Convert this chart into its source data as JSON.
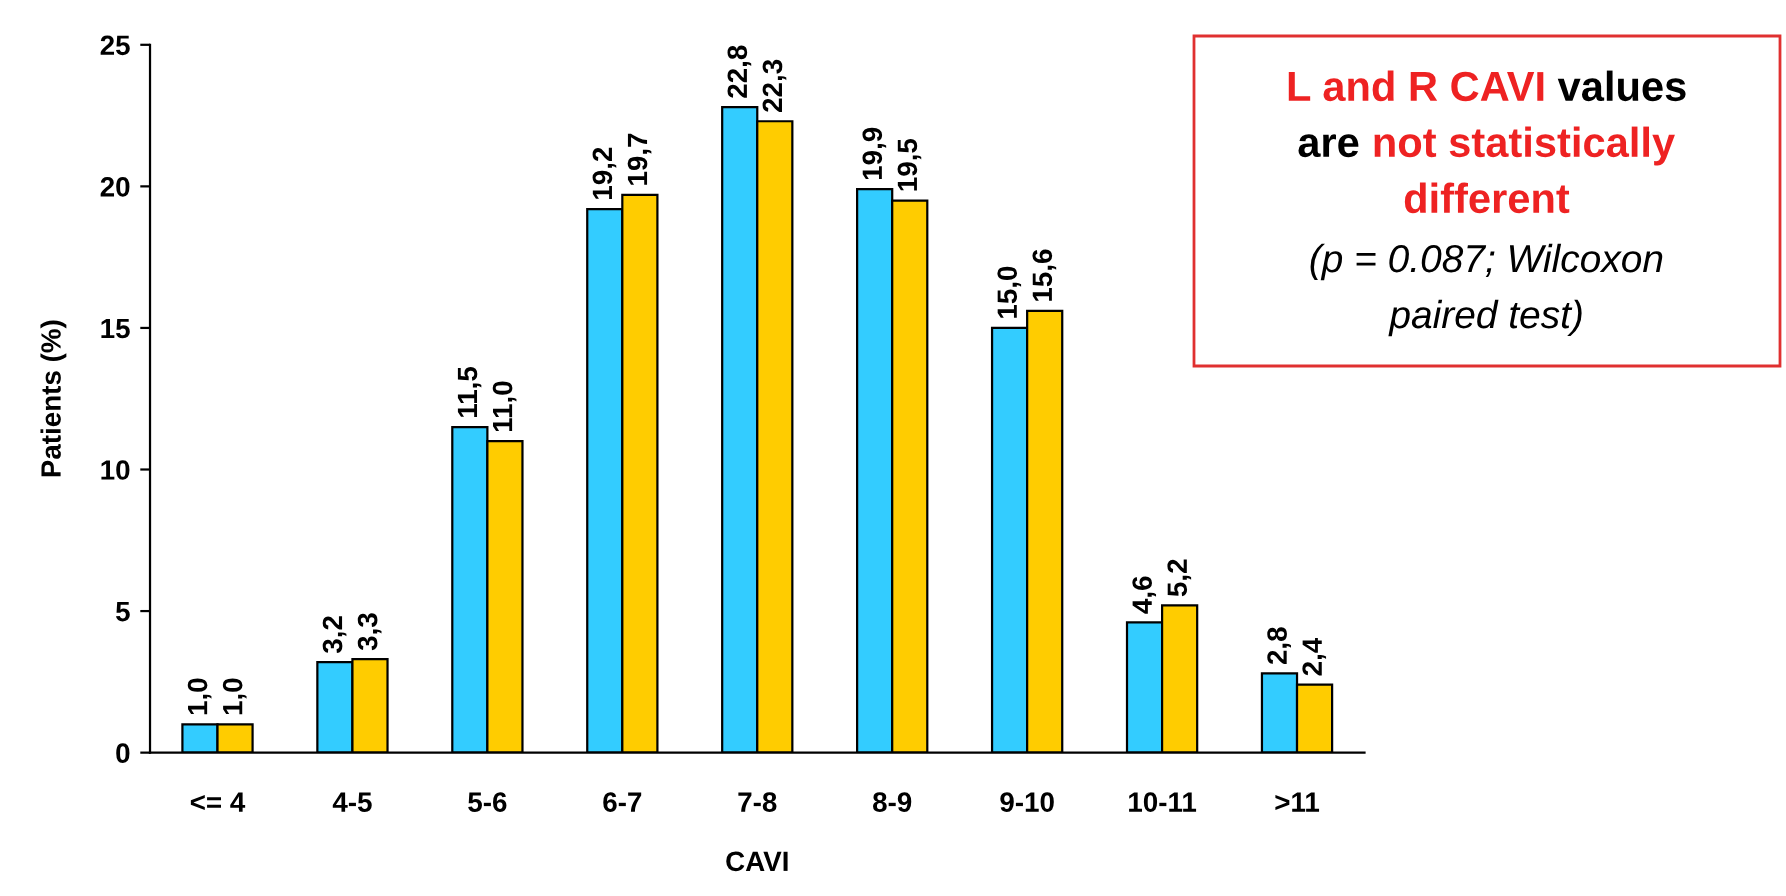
{
  "chart_data": {
    "type": "bar",
    "xlabel": "CAVI",
    "ylabel": "Patients (%)",
    "categories": [
      "<= 4",
      "4-5",
      "5-6",
      "6-7",
      "7-8",
      "8-9",
      "9-10",
      "10-11",
      ">11"
    ],
    "series": [
      {
        "color": "#33ccff",
        "values": [
          1.0,
          3.2,
          11.5,
          19.2,
          22.8,
          19.9,
          15.0,
          4.6,
          2.8
        ],
        "value_labels": [
          "1,0",
          "3,2",
          "11,5",
          "19,2",
          "22,8",
          "19,9",
          "15,0",
          "4,6",
          "2,8"
        ]
      },
      {
        "color": "#ffcc00",
        "values": [
          1.0,
          3.3,
          11.0,
          19.7,
          22.3,
          19.5,
          15.6,
          5.2,
          2.4
        ],
        "value_labels": [
          "1,0",
          "3,3",
          "11,0",
          "19,7",
          "22,3",
          "19,5",
          "15,6",
          "5,2",
          "2,4"
        ]
      }
    ],
    "ylim": [
      0,
      25
    ],
    "yticks": [
      0,
      5,
      10,
      15,
      20,
      25
    ],
    "grid": false,
    "legend": false,
    "annotations": [
      "L and R CAVI",
      "values",
      "are",
      "not statistically",
      "different",
      "(p = 0.087; Wilcoxon",
      "paired test)"
    ]
  }
}
